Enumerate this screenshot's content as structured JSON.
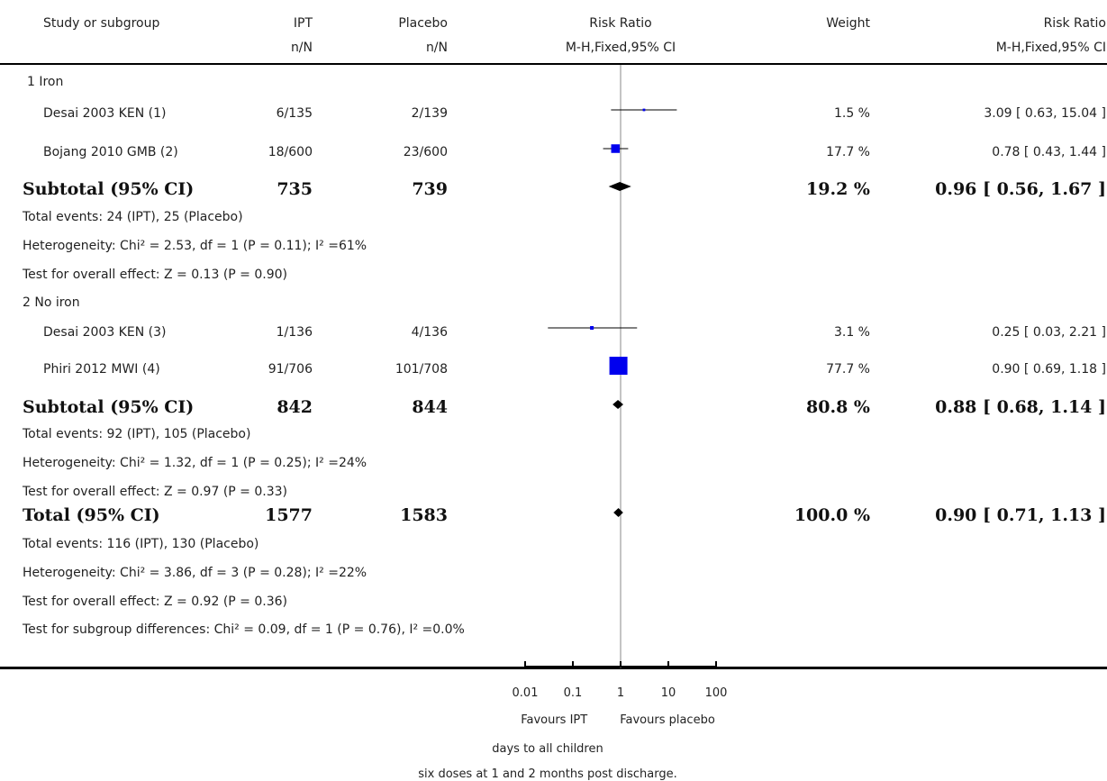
{
  "header": {
    "study": "Study or subgroup",
    "exp": "IPT",
    "ctrl": "Placebo",
    "plot": "Risk Ratio",
    "weight": "Weight",
    "rr": "Risk Ratio",
    "exp_sub": "n/N",
    "ctrl_sub": "n/N",
    "plot_sub": "M-H,Fixed,95% CI",
    "rr_sub": "M-H,Fixed,95% CI"
  },
  "g1": {
    "label": "1 Iron",
    "s1": {
      "study": "Desai 2003 KEN (1)",
      "exp": "6/135",
      "ctrl": "2/139",
      "weight": "1.5 %",
      "ci": "3.09 [ 0.63, 15.04 ]"
    },
    "s2": {
      "study": "Bojang 2010 GMB (2)",
      "exp": "18/600",
      "ctrl": "23/600",
      "weight": "17.7 %",
      "ci": "0.78 [ 0.43, 1.44 ]"
    },
    "sub": {
      "label": "Subtotal (95% CI)",
      "exp": "735",
      "ctrl": "739",
      "weight": "19.2 %",
      "ci": "0.96 [ 0.56, 1.67 ]"
    },
    "events": "Total events: 24 (IPT), 25 (Placebo)",
    "het": "Heterogeneity: Chi² = 2.53, df = 1 (P = 0.11); I² =61%",
    "test": "Test for overall effect: Z = 0.13 (P = 0.90)"
  },
  "g2": {
    "label": "2 No iron",
    "s1": {
      "study": "Desai 2003 KEN (3)",
      "exp": "1/136",
      "ctrl": "4/136",
      "weight": "3.1 %",
      "ci": "0.25 [ 0.03, 2.21 ]"
    },
    "s2": {
      "study": "Phiri 2012 MWI (4)",
      "exp": "91/706",
      "ctrl": "101/708",
      "weight": "77.7 %",
      "ci": "0.90 [ 0.69, 1.18 ]"
    },
    "sub": {
      "label": "Subtotal (95% CI)",
      "exp": "842",
      "ctrl": "844",
      "weight": "80.8 %",
      "ci": "0.88 [ 0.68, 1.14 ]"
    },
    "events": "Total events: 92 (IPT), 105 (Placebo)",
    "het": "Heterogeneity: Chi² = 1.32, df = 1 (P = 0.25); I² =24%",
    "test": "Test for overall effect: Z = 0.97 (P = 0.33)"
  },
  "total": {
    "label": "Total (95% CI)",
    "exp": "1577",
    "ctrl": "1583",
    "weight": "100.0 %",
    "ci": "0.90 [ 0.71, 1.13 ]",
    "events": "Total events: 116 (IPT), 130 (Placebo)",
    "het": "Heterogeneity: Chi² = 3.86, df = 3 (P = 0.28); I² =22%",
    "test": "Test for overall effect: Z = 0.92 (P = 0.36)",
    "subgroup": "Test for subgroup differences: Chi² = 0.09, df = 1 (P = 0.76), I² =0.0%"
  },
  "footer": {
    "favours_left": "Favours IPT",
    "favours_right": "Favours placebo",
    "note1": "days to all children",
    "note2": "six doses at 1 and 2 months post discharge."
  },
  "colors": {
    "marker": "#0000ee",
    "line": "#000000",
    "null_line": "#888888"
  },
  "chart_data": {
    "type": "forest",
    "xscale": "log",
    "xlim": [
      0.01,
      100
    ],
    "ticks": [
      0.01,
      0.1,
      1,
      10,
      100
    ],
    "tick_labels": [
      "0.01",
      "0.1",
      "1",
      "10",
      "100"
    ],
    "studies": [
      {
        "name": "Desai 2003 KEN (1)",
        "rr": 3.09,
        "lo": 0.63,
        "hi": 15.04,
        "weight": 1.5
      },
      {
        "name": "Bojang 2010 GMB (2)",
        "rr": 0.78,
        "lo": 0.43,
        "hi": 1.44,
        "weight": 17.7
      },
      {
        "name": "Desai 2003 KEN (3)",
        "rr": 0.25,
        "lo": 0.03,
        "hi": 2.21,
        "weight": 3.1
      },
      {
        "name": "Phiri 2012 MWI (4)",
        "rr": 0.9,
        "lo": 0.69,
        "hi": 1.18,
        "weight": 77.7
      }
    ],
    "pooled": [
      {
        "name": "Subtotal (95% CI)",
        "rr": 0.96,
        "lo": 0.56,
        "hi": 1.67
      },
      {
        "name": "Subtotal (95% CI)",
        "rr": 0.88,
        "lo": 0.68,
        "hi": 1.14
      },
      {
        "name": "Total (95% CI)",
        "rr": 0.9,
        "lo": 0.71,
        "hi": 1.13
      }
    ]
  }
}
